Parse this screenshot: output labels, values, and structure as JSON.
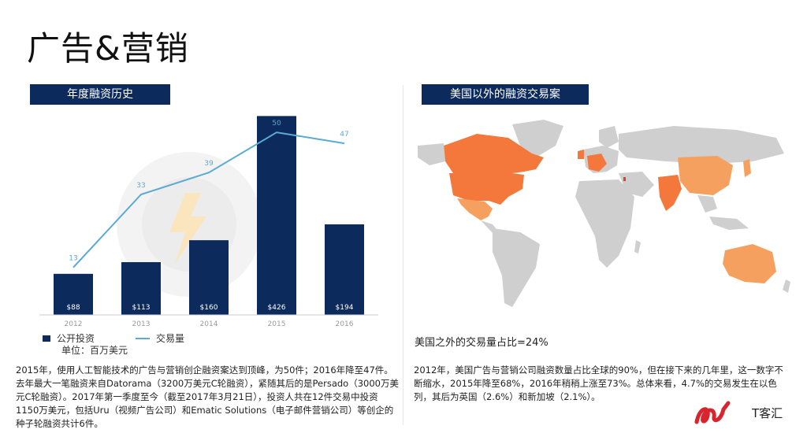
{
  "page": {
    "title": "广告&营销"
  },
  "left_panel": {
    "header": "年度融资历史",
    "legend": {
      "bars_label": "公开投资",
      "line_label": "交易量",
      "unit": "单位：百万美元"
    },
    "paragraph": "2015年，使用人工智能技术的广告与营销创企融资案达到顶峰，为50件；2016年降至47件。去年最大一笔融资来自Datorama（3200万美元C轮融资），紧随其后的是Persado（3000万美元C轮融资）。2017年第一季度至今（截至2017年3月21日），投资人共在12件交易中投资1150万美元，包括Uru（视频广告公司）和Ematic Solutions（电子邮件营销公司）等创企的种子轮融资共计6件。"
  },
  "right_panel": {
    "header": "美国以外的融资交易案",
    "share_text": "美国之外的交易量占比=24%",
    "paragraph": "2012年，美国广告与营销公司融资数量占比全球的90%，但在接下来的几年里，这一数字不断缩水，2015年降至68%，2016年稍稍上涨至73%。总体来看，4.7%的交易发生在以色列，其后为英国（2.6%）和新加坡（2.1%）。"
  },
  "colors": {
    "bar": "#0d2a5c",
    "line": "#5aaad4",
    "highlight_country": "#f4783c",
    "highlight_country_light": "#f6a060",
    "map_base": "#cfcfcf"
  },
  "chart_data": {
    "type": "bar+line",
    "categories": [
      "2012",
      "2013",
      "2014",
      "2015",
      "2016"
    ],
    "series": [
      {
        "name": "公开投资",
        "type": "bar",
        "values": [
          88,
          113,
          160,
          426,
          194
        ],
        "labels": [
          "$88",
          "$113",
          "$160",
          "$426",
          "$194"
        ]
      },
      {
        "name": "交易量",
        "type": "line",
        "values": [
          13,
          33,
          39,
          50,
          47
        ]
      }
    ],
    "bar_ylim": [
      0,
      430
    ],
    "line_ylim": [
      0,
      55
    ],
    "grid": false
  },
  "map": {
    "icons": [
      "world-map-icon"
    ]
  },
  "logo": {
    "text": "T客汇"
  }
}
